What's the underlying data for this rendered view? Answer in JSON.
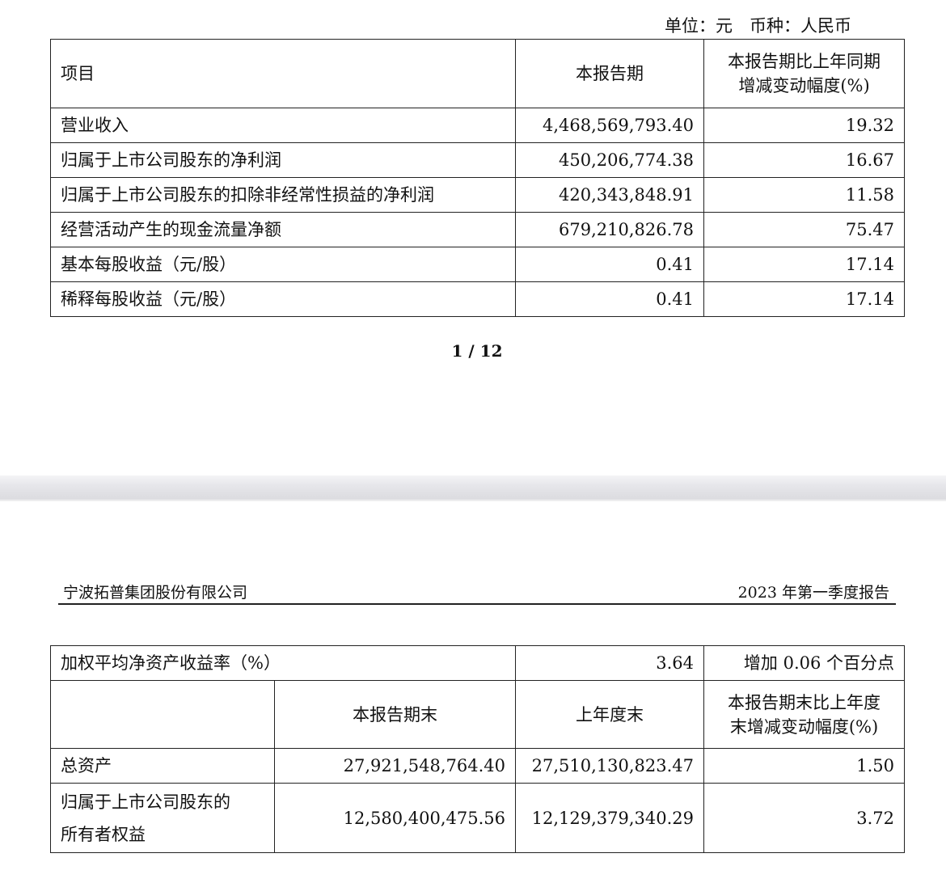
{
  "page1": {
    "unit_note": "单位：元　币种：人民币",
    "table": {
      "headers": [
        "项目",
        "本报告期",
        "本报告期比上年同期",
        "增减变动幅度(%)"
      ],
      "rows": [
        [
          "营业收入",
          "4,468,569,793.40",
          "19.32"
        ],
        [
          "归属于上市公司股东的净利润",
          "450,206,774.38",
          "16.67"
        ],
        [
          "归属于上市公司股东的扣除非经常性损益的净利润",
          "420,343,848.91",
          "11.58"
        ],
        [
          "经营活动产生的现金流量净额",
          "679,210,826.78",
          "75.47"
        ],
        [
          "基本每股收益（元/股）",
          "0.41",
          "17.14"
        ],
        [
          "稀释每股收益（元/股）",
          "0.41",
          "17.14"
        ]
      ]
    },
    "page_number": "1 / 12"
  },
  "page2": {
    "company": "宁波拓普集团股份有限公司",
    "report_title": "2023 年第一季度报告",
    "table": {
      "roe_row": [
        "加权平均净资产收益率（%）",
        "3.64",
        "增加 0.06 个百分点"
      ],
      "headers": [
        "本报告期末",
        "上年度末",
        "本报告期末比上年度",
        "末增减变动幅度(%)"
      ],
      "rows": [
        [
          "总资产",
          "27,921,548,764.40",
          "27,510,130,823.47",
          "1.50"
        ],
        [
          "归属于上市公司股东的",
          "所有者权益",
          "12,580,400,475.56",
          "12,129,379,340.29",
          "3.72"
        ]
      ]
    }
  }
}
